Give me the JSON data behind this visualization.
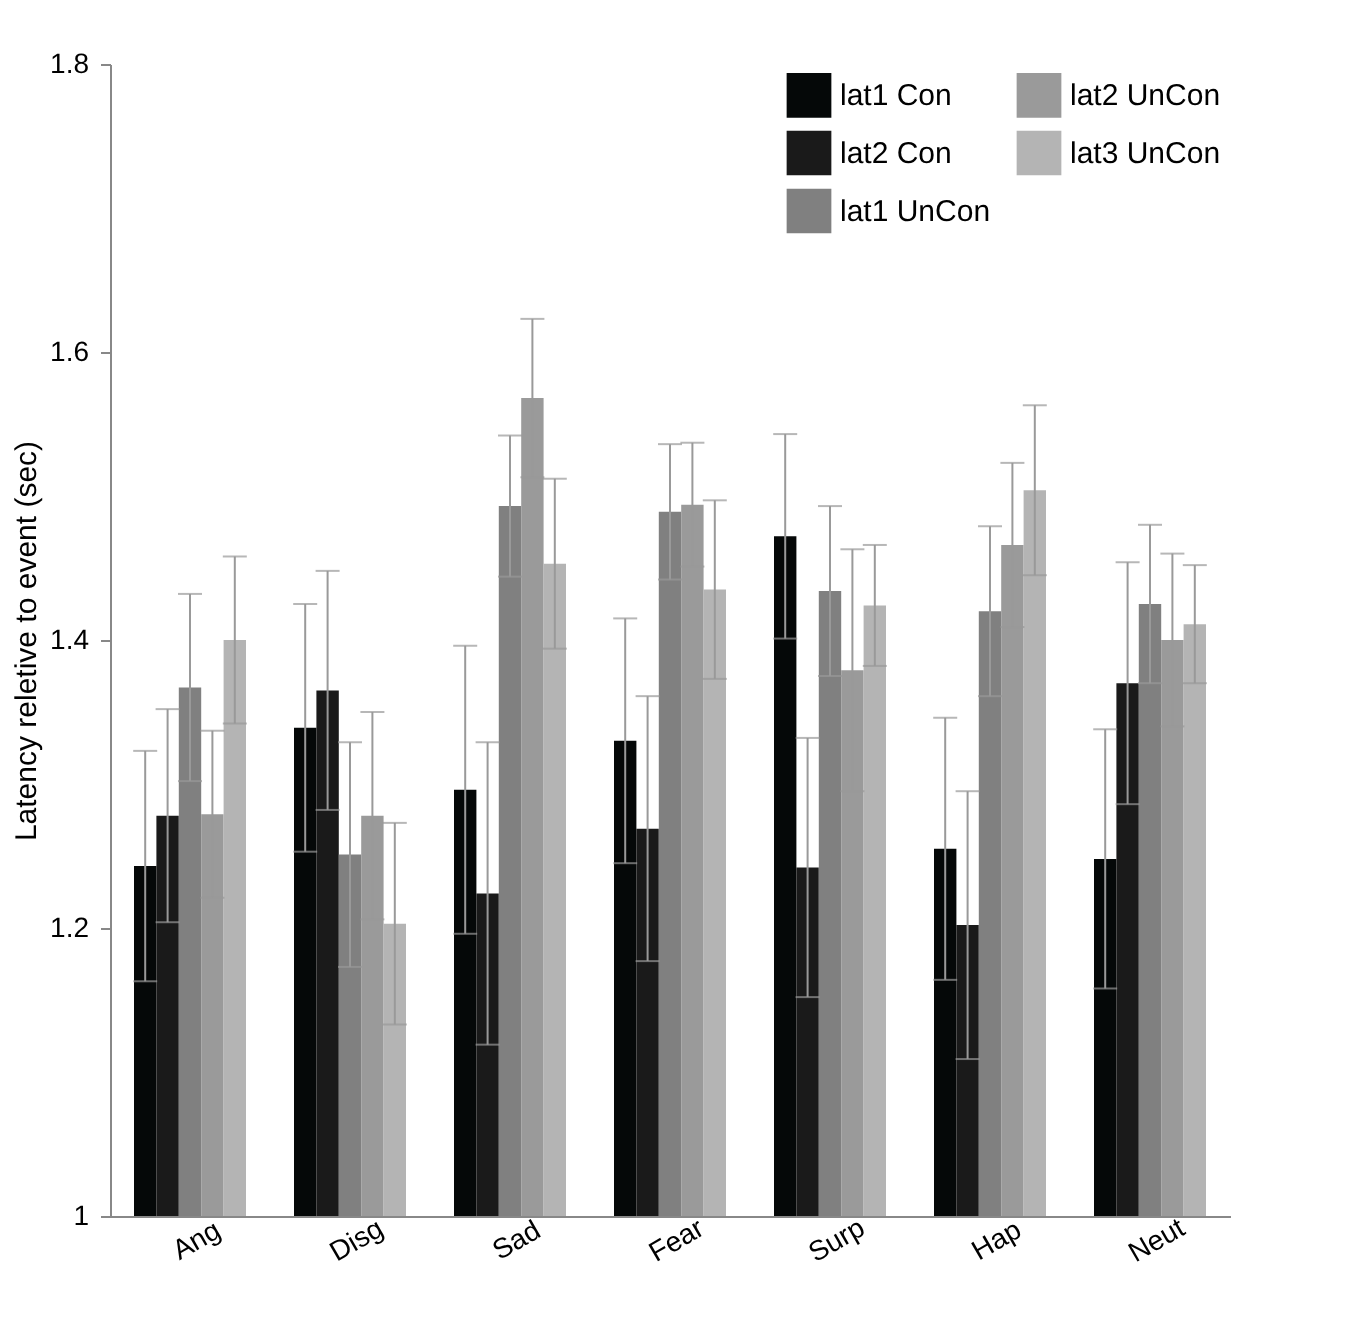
{
  "chart_data": {
    "type": "bar",
    "ylabel": "Latency reletive to event (sec)",
    "categories": [
      "Ang",
      "Disg",
      "Sad",
      "Fear",
      "Surp",
      "Hap",
      "Neut"
    ],
    "series": [
      {
        "name": "lat1 Con",
        "color": "#050808",
        "values": [
          1.243,
          1.339,
          1.296,
          1.33,
          1.472,
          1.255,
          1.248
        ],
        "errors": [
          0.08,
          0.086,
          0.1,
          0.085,
          0.071,
          0.091,
          0.09
        ]
      },
      {
        "name": "lat2 Con",
        "color": "#1a1a1a",
        "values": [
          1.278,
          1.365,
          1.224,
          1.269,
          1.242,
          1.202,
          1.37
        ],
        "errors": [
          0.074,
          0.083,
          0.105,
          0.092,
          0.09,
          0.093,
          0.084
        ]
      },
      {
        "name": "lat1 UnCon",
        "color": "#808080",
        "values": [
          1.367,
          1.251,
          1.493,
          1.489,
          1.434,
          1.42,
          1.425
        ],
        "errors": [
          0.065,
          0.078,
          0.049,
          0.047,
          0.059,
          0.059,
          0.055
        ]
      },
      {
        "name": "lat2 UnCon",
        "color": "#9a9a9a",
        "values": [
          1.279,
          1.278,
          1.568,
          1.494,
          1.379,
          1.466,
          1.4
        ],
        "errors": [
          0.058,
          0.072,
          0.055,
          0.043,
          0.084,
          0.057,
          0.06
        ]
      },
      {
        "name": "lat3 UnCon",
        "color": "#b4b4b4",
        "values": [
          1.4,
          1.203,
          1.453,
          1.435,
          1.424,
          1.504,
          1.411
        ],
        "errors": [
          0.058,
          0.07,
          0.059,
          0.062,
          0.042,
          0.059,
          0.041
        ]
      }
    ],
    "ylim": [
      1,
      1.8
    ],
    "yticks": [
      1,
      1.2,
      1.4,
      1.6,
      1.8
    ],
    "grid": false,
    "legend": "top right"
  }
}
